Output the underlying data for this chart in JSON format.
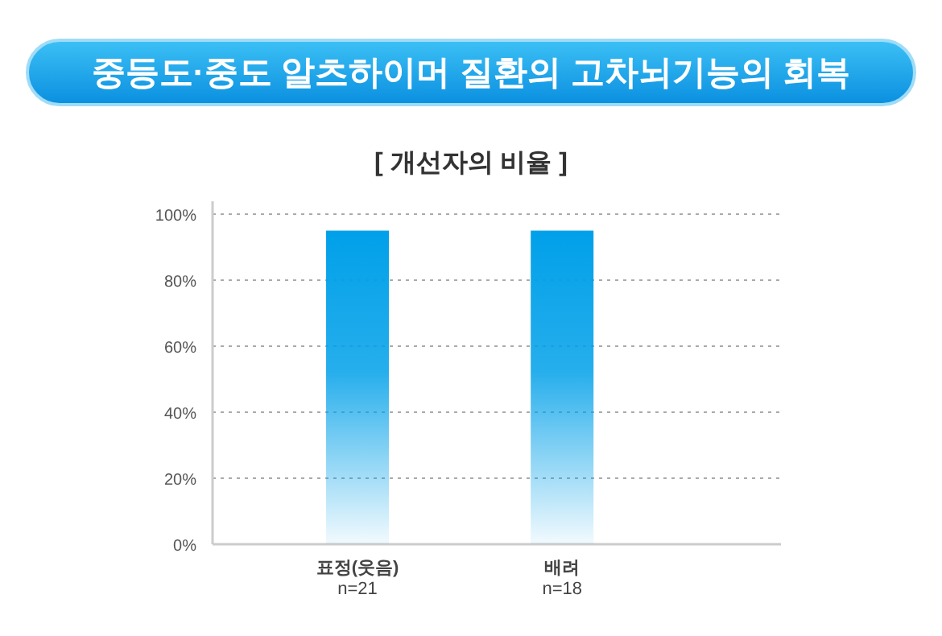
{
  "chart_data": {
    "type": "bar",
    "title": "중등도·중도 알츠하이머 질환의 고차뇌기능의 회복",
    "subtitle": "[ 개선자의 비율 ]",
    "categories": [
      "표정(웃음)\nn=21",
      "배려\nn=18"
    ],
    "values": [
      95,
      95
    ],
    "color": "#00a0e9",
    "ylim": [
      0,
      100
    ],
    "yticks": [
      {
        "value": 0,
        "label": "0%"
      },
      {
        "value": 20,
        "label": "20%"
      },
      {
        "value": 40,
        "label": "40%"
      },
      {
        "value": 60,
        "label": "60%"
      },
      {
        "value": 80,
        "label": "80%"
      },
      {
        "value": 100,
        "label": "100%"
      }
    ],
    "grid": "y"
  }
}
